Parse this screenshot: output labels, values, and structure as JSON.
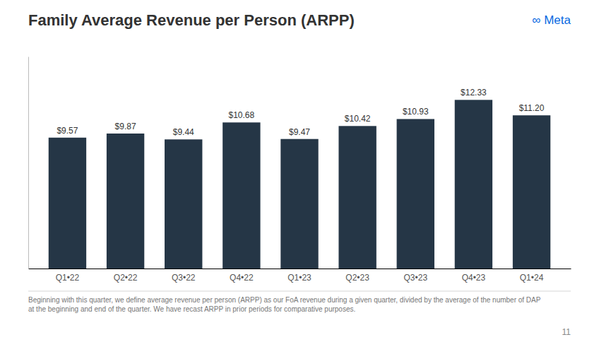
{
  "chart_data": {
    "type": "bar",
    "title": "Family Average Revenue per Person (ARPP)",
    "categories": [
      "Q1•22",
      "Q2•22",
      "Q3•22",
      "Q4•22",
      "Q1•23",
      "Q2•23",
      "Q3•23",
      "Q4•23",
      "Q1•24"
    ],
    "values": [
      9.57,
      9.87,
      9.44,
      10.68,
      9.47,
      10.42,
      10.93,
      12.33,
      11.2
    ],
    "value_labels": [
      "$9.57",
      "$9.87",
      "$9.44",
      "$10.68",
      "$9.47",
      "$10.42",
      "$10.93",
      "$12.33",
      "$11.20"
    ],
    "data_labels": true,
    "color": "#253646",
    "ylim": [
      0,
      15.5
    ],
    "grid": false,
    "tick_labels": "x",
    "annotations": [
      {
        "text": "∞ Meta",
        "color": "#0668E1"
      },
      {
        "text": "Beginning with this quarter, we define average revenue per person (ARPP) as our FoA revenue during a given quarter, divided by the average of the number of DAP at the beginning and end of the quarter. We have recast ARPP in prior periods for comparative purposes."
      },
      {
        "text": "11"
      }
    ]
  }
}
